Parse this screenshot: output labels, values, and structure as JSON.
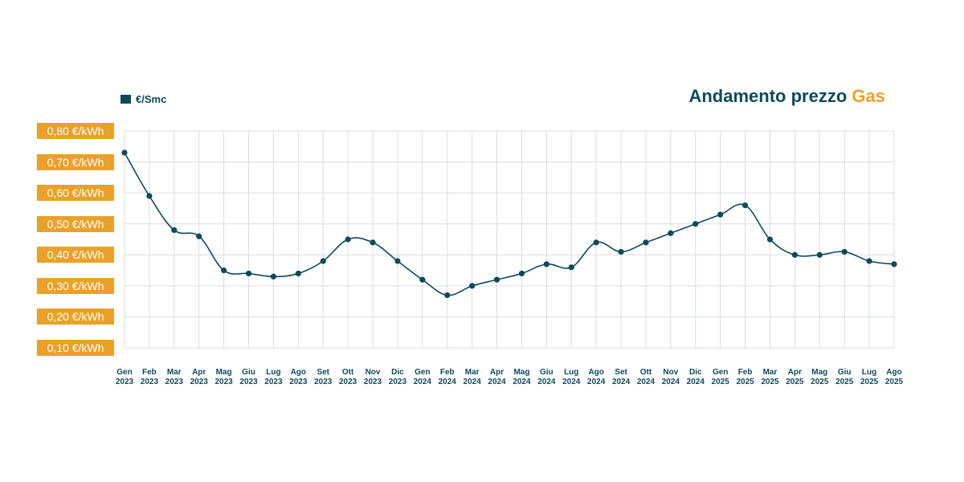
{
  "header": {
    "title_main": "Andamento prezzo",
    "title_accent": "Gas",
    "legend_label": "€/Smc"
  },
  "colors": {
    "line": "#0d4a5a",
    "accent": "#e9a12a",
    "grid": "#d9dde0"
  },
  "chart_data": {
    "type": "line",
    "title": "Andamento prezzo Gas",
    "xlabel": "",
    "ylabel": "",
    "ylim": [
      0.1,
      0.8
    ],
    "y_ticks": [
      0.8,
      0.7,
      0.6,
      0.5,
      0.4,
      0.3,
      0.2,
      0.1
    ],
    "y_tick_labels": [
      "0,80 €/kWh",
      "0,70 €/kWh",
      "0,60 €/kWh",
      "0,50 €/kWh",
      "0,40 €/kWh",
      "0,30 €/kWh",
      "0,20 €/kWh",
      "0,10 €/kWh"
    ],
    "grid": true,
    "legend_position": "top-left",
    "categories": [
      [
        "Gen",
        "2023"
      ],
      [
        "Feb",
        "2023"
      ],
      [
        "Mar",
        "2023"
      ],
      [
        "Apr",
        "2023"
      ],
      [
        "Mag",
        "2023"
      ],
      [
        "Giu",
        "2023"
      ],
      [
        "Lug",
        "2023"
      ],
      [
        "Ago",
        "2023"
      ],
      [
        "Set",
        "2023"
      ],
      [
        "Ott",
        "2023"
      ],
      [
        "Nov",
        "2023"
      ],
      [
        "Dic",
        "2023"
      ],
      [
        "Gen",
        "2024"
      ],
      [
        "Feb",
        "2024"
      ],
      [
        "Mar",
        "2024"
      ],
      [
        "Apr",
        "2024"
      ],
      [
        "Mag",
        "2024"
      ],
      [
        "Giu",
        "2024"
      ],
      [
        "Lug",
        "2024"
      ],
      [
        "Ago",
        "2024"
      ],
      [
        "Set",
        "2024"
      ],
      [
        "Ott",
        "2024"
      ],
      [
        "Nov",
        "2024"
      ],
      [
        "Dic",
        "2024"
      ],
      [
        "Gen",
        "2025"
      ],
      [
        "Feb",
        "2025"
      ],
      [
        "Mar",
        "2025"
      ],
      [
        "Apr",
        "2025"
      ],
      [
        "Mag",
        "2025"
      ],
      [
        "Giu",
        "2025"
      ],
      [
        "Lug",
        "2025"
      ],
      [
        "Ago",
        "2025"
      ]
    ],
    "series": [
      {
        "name": "€/Smc",
        "values": [
          0.73,
          0.59,
          0.48,
          0.46,
          0.35,
          0.34,
          0.33,
          0.34,
          0.38,
          0.45,
          0.44,
          0.38,
          0.32,
          0.27,
          0.3,
          0.32,
          0.34,
          0.37,
          0.36,
          0.44,
          0.41,
          0.44,
          0.47,
          0.5,
          0.53,
          0.56,
          0.45,
          0.4,
          0.4,
          0.41,
          0.38,
          0.37
        ]
      }
    ]
  }
}
